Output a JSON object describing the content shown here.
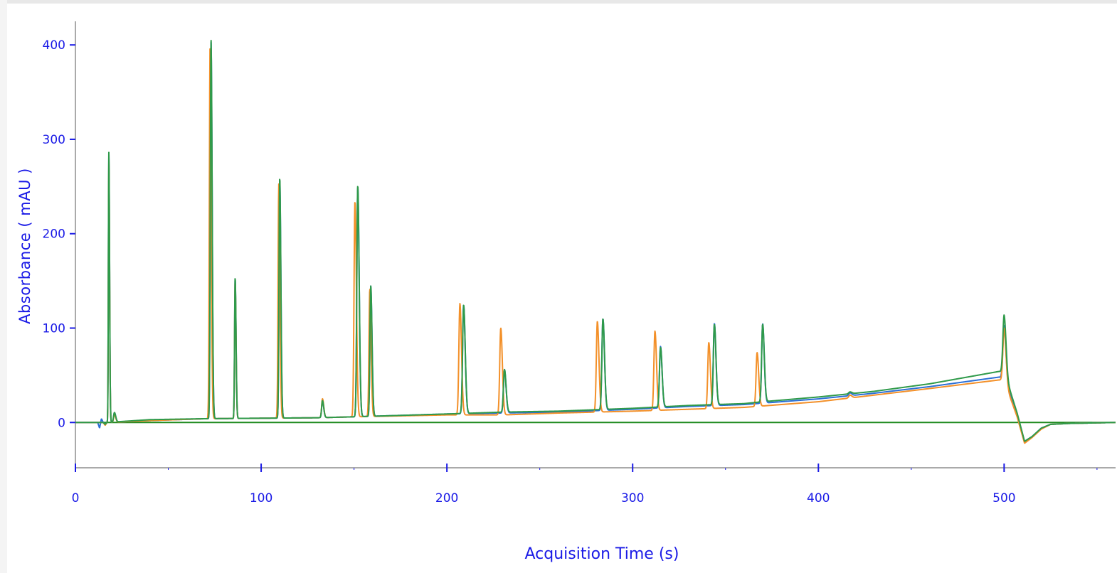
{
  "chart_data": {
    "type": "line",
    "xlabel": "Acquisition Time (s)",
    "ylabel": "Absorbance ( mAU )",
    "xlim": [
      0,
      560
    ],
    "ylim": [
      -48,
      425
    ],
    "xticks": [
      0,
      100,
      200,
      300,
      400,
      500
    ],
    "yticks": [
      0,
      100,
      200,
      300,
      400
    ],
    "grid": false,
    "legend": "none",
    "baseline": 0,
    "colors": {
      "axis": "#1a1ae6",
      "frame": "#555555",
      "baseline_color": "#1e8a1e"
    },
    "series": [
      {
        "color": "#2b6fd6",
        "baseline": [
          [
            0,
            0
          ],
          [
            12,
            0
          ],
          [
            13,
            -6
          ],
          [
            14,
            4
          ],
          [
            15,
            0
          ],
          [
            16,
            -2
          ],
          [
            17,
            0
          ],
          [
            40,
            2
          ],
          [
            70,
            4
          ],
          [
            130,
            5
          ],
          [
            150,
            6
          ],
          [
            200,
            9
          ],
          [
            230,
            10
          ],
          [
            260,
            11
          ],
          [
            300,
            14
          ],
          [
            330,
            17
          ],
          [
            360,
            19
          ],
          [
            400,
            25
          ],
          [
            430,
            31
          ],
          [
            460,
            38
          ],
          [
            497,
            48
          ],
          [
            500,
            48
          ],
          [
            503,
            30
          ],
          [
            507,
            8
          ],
          [
            511,
            -20
          ],
          [
            515,
            -15
          ],
          [
            520,
            -6
          ],
          [
            525,
            -2
          ],
          [
            535,
            -1
          ],
          [
            560,
            0
          ]
        ],
        "peaks": [
          [
            18,
            285,
            0.45
          ],
          [
            21,
            10,
            0.8
          ],
          [
            73,
            400,
            0.7
          ],
          [
            86,
            148,
            0.55
          ],
          [
            110,
            253,
            0.7
          ],
          [
            133,
            18,
            0.8
          ],
          [
            152,
            243,
            0.9
          ],
          [
            159,
            138,
            0.8
          ],
          [
            209,
            115,
            1.0
          ],
          [
            231,
            46,
            1.0
          ],
          [
            284,
            97,
            1.0
          ],
          [
            315,
            65,
            1.0
          ],
          [
            344,
            87,
            1.0
          ],
          [
            370,
            84,
            1.0
          ],
          [
            417,
            3,
            1.2
          ],
          [
            500,
            55,
            1.2
          ]
        ]
      },
      {
        "color": "#f39029",
        "baseline": [
          [
            0,
            0
          ],
          [
            15,
            0
          ],
          [
            16,
            -3
          ],
          [
            17,
            0
          ],
          [
            40,
            2
          ],
          [
            70,
            4
          ],
          [
            130,
            5
          ],
          [
            150,
            6
          ],
          [
            200,
            8
          ],
          [
            230,
            8
          ],
          [
            260,
            10
          ],
          [
            300,
            12
          ],
          [
            330,
            14
          ],
          [
            360,
            16
          ],
          [
            400,
            22
          ],
          [
            430,
            29
          ],
          [
            460,
            36
          ],
          [
            497,
            45
          ],
          [
            500,
            45
          ],
          [
            503,
            28
          ],
          [
            507,
            6
          ],
          [
            511,
            -22
          ],
          [
            515,
            -16
          ],
          [
            520,
            -7
          ],
          [
            525,
            -2
          ],
          [
            535,
            -1
          ],
          [
            560,
            0
          ]
        ],
        "peaks": [
          [
            18,
            280,
            0.45
          ],
          [
            21,
            8,
            0.8
          ],
          [
            72.5,
            395,
            0.7
          ],
          [
            86,
            145,
            0.55
          ],
          [
            109.5,
            248,
            0.7
          ],
          [
            133,
            20,
            0.8
          ],
          [
            150.5,
            228,
            0.9
          ],
          [
            158.5,
            135,
            0.8
          ],
          [
            207,
            118,
            1.0
          ],
          [
            229,
            92,
            1.0
          ],
          [
            281,
            96,
            1.0
          ],
          [
            312,
            84,
            1.0
          ],
          [
            341,
            70,
            1.0
          ],
          [
            367,
            57,
            1.0
          ],
          [
            417,
            3,
            1.2
          ],
          [
            500,
            55,
            1.2
          ]
        ]
      },
      {
        "color": "#2f9a4a",
        "baseline": [
          [
            0,
            0
          ],
          [
            15,
            0
          ],
          [
            16,
            -2
          ],
          [
            17,
            0
          ],
          [
            40,
            3
          ],
          [
            70,
            4
          ],
          [
            130,
            5
          ],
          [
            150,
            6
          ],
          [
            200,
            9
          ],
          [
            230,
            11
          ],
          [
            260,
            12
          ],
          [
            300,
            15
          ],
          [
            330,
            18
          ],
          [
            360,
            20
          ],
          [
            370,
            22
          ],
          [
            400,
            27
          ],
          [
            430,
            33
          ],
          [
            460,
            41
          ],
          [
            497,
            54
          ],
          [
            500,
            54
          ],
          [
            503,
            35
          ],
          [
            507,
            10
          ],
          [
            511,
            -20
          ],
          [
            515,
            -15
          ],
          [
            520,
            -6
          ],
          [
            525,
            -2
          ],
          [
            535,
            -1
          ],
          [
            560,
            0
          ]
        ],
        "peaks": [
          [
            18,
            286,
            0.45
          ],
          [
            21,
            10,
            0.8
          ],
          [
            73,
            402,
            0.7
          ],
          [
            86,
            150,
            0.55
          ],
          [
            110,
            255,
            0.7
          ],
          [
            133,
            18,
            0.8
          ],
          [
            152,
            245,
            0.9
          ],
          [
            159,
            138,
            0.8
          ],
          [
            209,
            115,
            1.0
          ],
          [
            231,
            45,
            1.0
          ],
          [
            284,
            96,
            1.0
          ],
          [
            315,
            63,
            1.0
          ],
          [
            344,
            85,
            1.0
          ],
          [
            370,
            82,
            1.0
          ],
          [
            417,
            2,
            1.2
          ],
          [
            500,
            60,
            1.2
          ]
        ]
      }
    ]
  }
}
